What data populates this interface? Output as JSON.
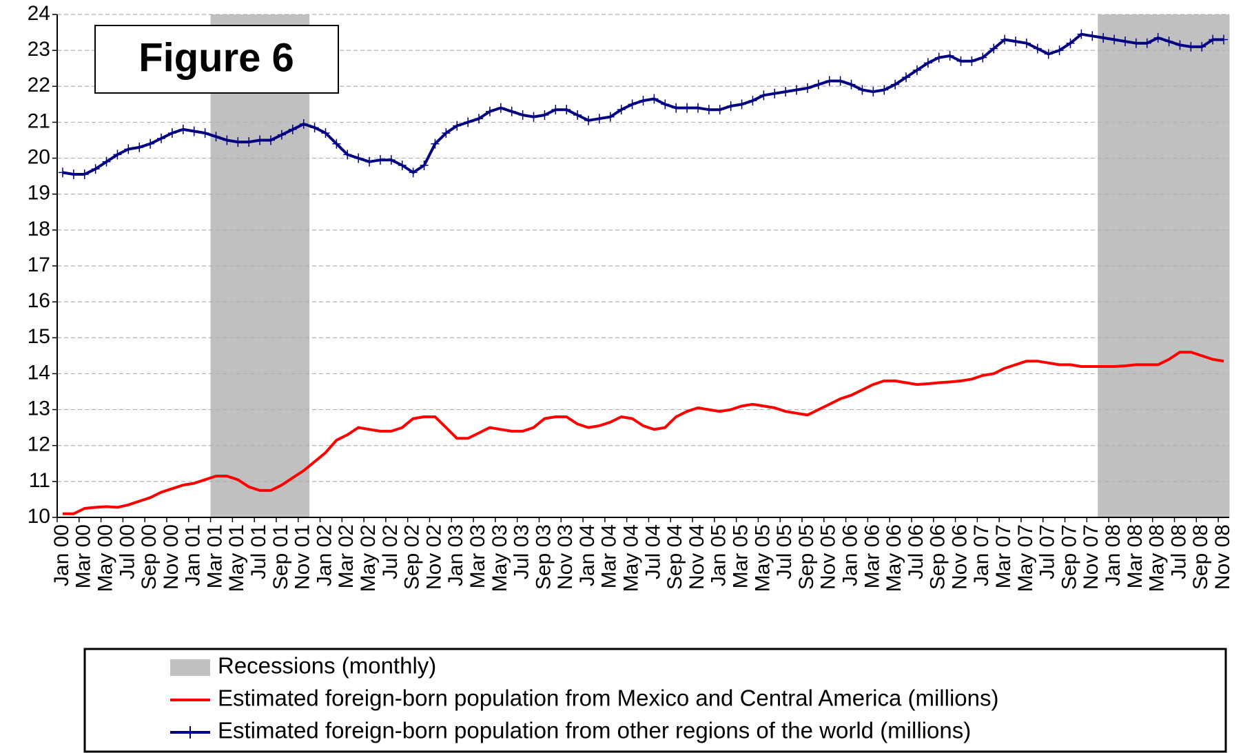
{
  "chart_data": {
    "type": "line",
    "title": "Figure 6",
    "categories": [
      "Jan 00",
      null,
      "Mar 00",
      null,
      "May 00",
      null,
      "Jul 00",
      null,
      "Sep 00",
      null,
      "Nov 00",
      null,
      "Jan 01",
      null,
      "Mar 01",
      null,
      "May 01",
      null,
      "Jul 01",
      null,
      "Sep 01",
      null,
      "Nov 01",
      null,
      "Jan 02",
      null,
      "Mar 02",
      null,
      "May 02",
      null,
      "Jul 02",
      null,
      "Sep 02",
      null,
      "Nov 02",
      null,
      "Jan 03",
      null,
      "Mar 03",
      null,
      "May 03",
      null,
      "Jul 03",
      null,
      "Sep 03",
      null,
      "Nov 03",
      null,
      "Jan 04",
      null,
      "Mar 04",
      null,
      "May 04",
      null,
      "Jul 04",
      null,
      "Sep 04",
      null,
      "Nov 04",
      null,
      "Jan 05",
      null,
      "Mar 05",
      null,
      "May 05",
      null,
      "Jul 05",
      null,
      "Sep 05",
      null,
      "Nov 05",
      null,
      "Jan 06",
      null,
      "Mar 06",
      null,
      "May 06",
      null,
      "Jul 06",
      null,
      "Sep 06",
      null,
      "Nov 06",
      null,
      "Jan 07",
      null,
      "Mar 07",
      null,
      "May 07",
      null,
      "Jul 07",
      null,
      "Sep 07",
      null,
      "Nov 07",
      null,
      "Jan 08",
      null,
      "Mar 08",
      null,
      "May 08",
      null,
      "Jul 08",
      null,
      "Sep 08",
      null,
      "Nov 08"
    ],
    "series": [
      {
        "name": "Recessions (monthly)",
        "type": "bar",
        "color": "#c0c0c0",
        "values": [
          null,
          null,
          null,
          null,
          null,
          null,
          null,
          null,
          null,
          null,
          null,
          null,
          null,
          null,
          24,
          24,
          24,
          24,
          24,
          24,
          24,
          24,
          24,
          null,
          null,
          null,
          null,
          null,
          null,
          null,
          null,
          null,
          null,
          null,
          null,
          null,
          null,
          null,
          null,
          null,
          null,
          null,
          null,
          null,
          null,
          null,
          null,
          null,
          null,
          null,
          null,
          null,
          null,
          null,
          null,
          null,
          null,
          null,
          null,
          null,
          null,
          null,
          null,
          null,
          null,
          null,
          null,
          null,
          null,
          null,
          null,
          null,
          null,
          null,
          null,
          null,
          null,
          null,
          null,
          null,
          null,
          null,
          null,
          null,
          null,
          null,
          null,
          null,
          null,
          null,
          null,
          null,
          null,
          null,
          null,
          24,
          24,
          24,
          24,
          24,
          24,
          24,
          24,
          24,
          24,
          24,
          24
        ]
      },
      {
        "name": "Estimated foreign-born population from Mexico and Central America (millions)",
        "type": "line",
        "color": "#ff0000",
        "values": [
          10.1,
          10.1,
          10.25,
          10.28,
          10.3,
          10.28,
          10.35,
          10.45,
          10.55,
          10.7,
          10.8,
          10.9,
          10.95,
          11.05,
          11.15,
          11.15,
          11.05,
          10.85,
          10.75,
          10.75,
          10.9,
          11.1,
          11.3,
          11.55,
          11.8,
          12.15,
          12.3,
          12.5,
          12.45,
          12.4,
          12.4,
          12.5,
          12.75,
          12.8,
          12.8,
          12.5,
          12.2,
          12.2,
          12.35,
          12.5,
          12.45,
          12.4,
          12.4,
          12.5,
          12.75,
          12.8,
          12.8,
          12.6,
          12.5,
          12.55,
          12.65,
          12.8,
          12.75,
          12.55,
          12.45,
          12.5,
          12.8,
          12.95,
          13.05,
          13.0,
          12.95,
          13.0,
          13.1,
          13.15,
          13.1,
          13.05,
          12.95,
          12.9,
          12.85,
          13.0,
          13.15,
          13.3,
          13.4,
          13.55,
          13.7,
          13.8,
          13.8,
          13.75,
          13.7,
          13.72,
          13.75,
          13.77,
          13.8,
          13.85,
          13.95,
          14.0,
          14.15,
          14.25,
          14.35,
          14.35,
          14.3,
          14.25,
          14.25,
          14.2,
          14.2,
          14.2,
          14.2,
          14.22,
          14.25,
          14.25,
          14.25,
          14.4,
          14.6,
          14.6,
          14.5,
          14.4,
          14.35
        ]
      },
      {
        "name": "Estimated foreign-born population from other regions of the world (millions)",
        "type": "line",
        "color": "#000080",
        "marker": "+",
        "values": [
          19.6,
          19.55,
          19.55,
          19.7,
          19.9,
          20.1,
          20.25,
          20.3,
          20.4,
          20.55,
          20.7,
          20.8,
          20.75,
          20.7,
          20.6,
          20.5,
          20.45,
          20.45,
          20.5,
          20.5,
          20.65,
          20.8,
          20.95,
          20.85,
          20.7,
          20.4,
          20.1,
          20.0,
          19.9,
          19.95,
          19.95,
          19.8,
          19.6,
          19.8,
          20.4,
          20.7,
          20.9,
          21.0,
          21.1,
          21.3,
          21.4,
          21.3,
          21.2,
          21.15,
          21.2,
          21.35,
          21.35,
          21.2,
          21.05,
          21.1,
          21.15,
          21.35,
          21.5,
          21.6,
          21.65,
          21.5,
          21.4,
          21.4,
          21.4,
          21.35,
          21.35,
          21.45,
          21.5,
          21.6,
          21.75,
          21.8,
          21.85,
          21.9,
          21.95,
          22.05,
          22.15,
          22.15,
          22.05,
          21.9,
          21.85,
          21.9,
          22.05,
          22.25,
          22.45,
          22.65,
          22.8,
          22.85,
          22.7,
          22.7,
          22.8,
          23.05,
          23.3,
          23.25,
          23.2,
          23.05,
          22.9,
          23.0,
          23.2,
          23.45,
          23.4,
          23.35,
          23.3,
          23.25,
          23.2,
          23.2,
          23.35,
          23.25,
          23.15,
          23.1,
          23.1,
          23.3,
          23.3
        ]
      }
    ],
    "ylim": [
      10,
      24
    ],
    "yticks": [
      10,
      11,
      12,
      13,
      14,
      15,
      16,
      17,
      18,
      19,
      20,
      21,
      22,
      23,
      24
    ],
    "grid": true,
    "legend": "bottom"
  }
}
